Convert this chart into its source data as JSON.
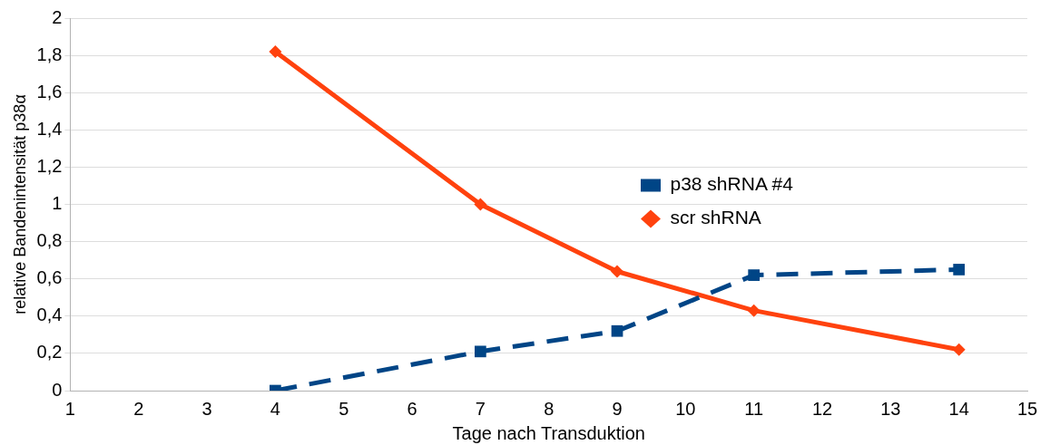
{
  "chart_data": {
    "type": "line",
    "xlabel": "Tage nach Transduktion",
    "ylabel": "relative Bandenintensität p38α",
    "x": [
      4,
      7,
      9,
      11,
      14
    ],
    "series": [
      {
        "name": "p38 shRNA #4",
        "color": "#004586",
        "values": [
          0,
          0.21,
          0.32,
          0.62,
          0.65
        ],
        "marker": "square",
        "line_style": "dashed"
      },
      {
        "name": "scr shRNA",
        "color": "#ff420e",
        "values": [
          1.82,
          1.0,
          0.64,
          0.43,
          0.22
        ],
        "marker": "diamond",
        "line_style": "solid"
      }
    ],
    "xlim": [
      1,
      15
    ],
    "xticks": [
      1,
      2,
      3,
      4,
      5,
      6,
      7,
      8,
      9,
      10,
      11,
      12,
      13,
      14,
      15
    ],
    "ylim": [
      0,
      2
    ],
    "yticks": [
      0,
      {
        "value": 0.2,
        "label": "0,2"
      },
      {
        "value": 0.4,
        "label": "0,4"
      },
      {
        "value": 0.6,
        "label": "0,6"
      },
      {
        "value": 0.8,
        "label": "0,8"
      },
      1,
      {
        "value": 1.2,
        "label": "1,2"
      },
      {
        "value": 1.4,
        "label": "1,4"
      },
      {
        "value": 1.6,
        "label": "1,6"
      },
      {
        "value": 1.8,
        "label": "1,8"
      },
      2
    ],
    "grid": "y",
    "legend": "right"
  }
}
